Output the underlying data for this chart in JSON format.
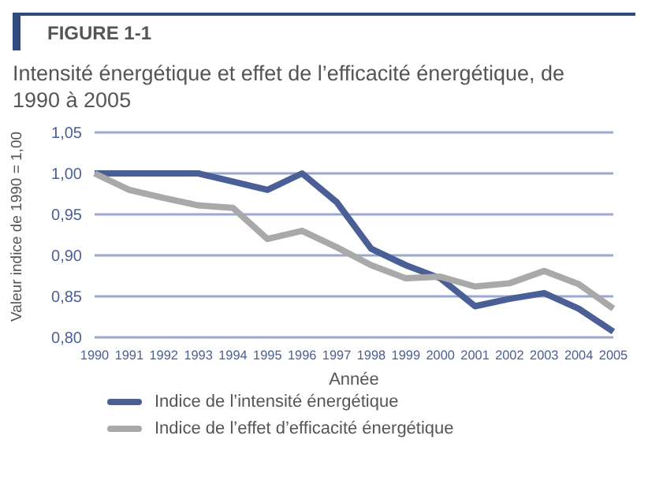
{
  "chart_data": {
    "type": "line",
    "title": "Intensité énergétique et effet de l’efficacité énergétique, de 1990 à 2005",
    "annotations": [
      "FIGURE 1-1"
    ],
    "xlabel": "Année",
    "ylabel": "Valeur indice de 1990 = 1,00",
    "categories": [
      "1990",
      "1991",
      "1992",
      "1993",
      "1994",
      "1995",
      "1996",
      "1997",
      "1998",
      "1999",
      "2000",
      "2001",
      "2002",
      "2003",
      "2004",
      "2005"
    ],
    "series": [
      {
        "name": "Indice de l’intensité énergétique",
        "color": "#4a5f96",
        "values": [
          1.0,
          1.0,
          1.0,
          1.0,
          0.99,
          0.98,
          1.0,
          0.965,
          0.908,
          0.888,
          0.872,
          0.838,
          0.847,
          0.854,
          0.835,
          0.807
        ]
      },
      {
        "name": "Indice de l’effet d’efficacité énergétique",
        "color": "#a9a9a9",
        "values": [
          1.0,
          0.98,
          0.97,
          0.961,
          0.958,
          0.92,
          0.93,
          0.91,
          0.888,
          0.872,
          0.874,
          0.862,
          0.866,
          0.881,
          0.865,
          0.835
        ]
      }
    ],
    "ylim": [
      0.8,
      1.05
    ],
    "yticks": [
      {
        "value": 0.8,
        "label": "0,80"
      },
      {
        "value": 0.85,
        "label": "0,85"
      },
      {
        "value": 0.9,
        "label": "0,90"
      },
      {
        "value": 0.95,
        "label": "0,95"
      },
      {
        "value": 1.0,
        "label": "1,00"
      },
      {
        "value": 1.05,
        "label": "1,05"
      }
    ],
    "grid": "y",
    "legend": "bottom",
    "marker": "none",
    "line_style": "solid"
  }
}
